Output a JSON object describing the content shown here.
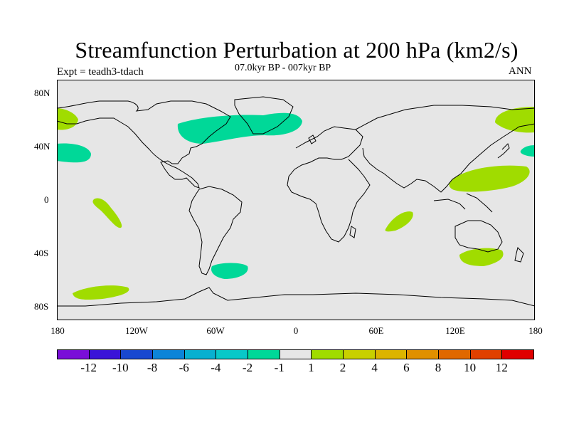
{
  "header": {
    "title": "Streamfunction Perturbation at 200 hPa (km2/s)",
    "left_string": "Expt = teadh3-tdach",
    "center_string": "07.0kyr BP - 007kyr BP",
    "right_string": "ANN"
  },
  "axes": {
    "lat_labels": [
      "80N",
      "40N",
      "0",
      "40S",
      "80S"
    ],
    "lon_labels": [
      "180",
      "120W",
      "60W",
      "0",
      "60E",
      "120E",
      "180"
    ]
  },
  "legend": {
    "labels": [
      "-12",
      "-10",
      "-8",
      "-6",
      "-4",
      "-2",
      "-1",
      "1",
      "2",
      "4",
      "6",
      "8",
      "10",
      "12"
    ],
    "colors": [
      "#7a0ed8",
      "#3a14d8",
      "#1848d0",
      "#0c84d8",
      "#08b0d0",
      "#08c8c8",
      "#00d898",
      "#e6e6e6",
      "#a0dc00",
      "#c8d000",
      "#dcb400",
      "#e09000",
      "#e06800",
      "#e04000",
      "#e00000"
    ]
  },
  "colors": {
    "ocean_land_fill": "#e6e6e6",
    "positive_contour": "#a0dc00",
    "negative_contour": "#00d898"
  }
}
